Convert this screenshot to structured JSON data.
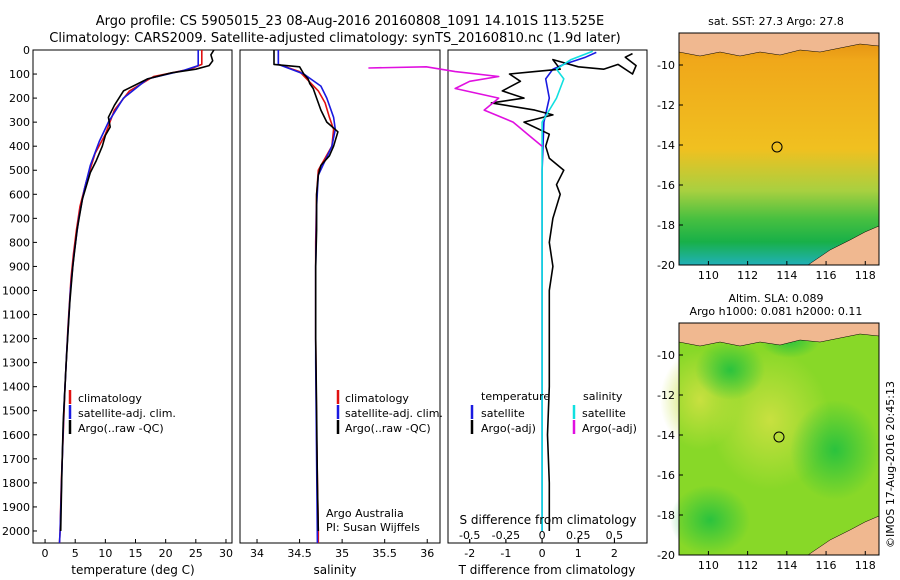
{
  "title_line1": "Argo profile: CS 5905015_23 08-Aug-2016 20160808_1091 14.101S 113.525E",
  "title_line2": "Climatology: CARS2009. Satellite-adjusted climatology: synTS_20160810.nc (1.9d later)",
  "colors": {
    "climatology": "#e01010",
    "satellite": "#1a1ae0",
    "argo": "#000000",
    "s_satellite": "#10e0e0",
    "s_argo": "#e010e0"
  },
  "chart_data": [
    {
      "type": "line",
      "xlabel": "temperature (deg C)",
      "xlim": [
        -2,
        31
      ],
      "ylim": [
        0,
        2050
      ],
      "xticks": [
        "0",
        "5",
        "10",
        "15",
        "20",
        "25",
        "30"
      ],
      "yticks": [
        "0",
        "100",
        "200",
        "300",
        "400",
        "500",
        "600",
        "700",
        "800",
        "900",
        "1000",
        "1100",
        "1200",
        "1300",
        "1400",
        "1500",
        "1600",
        "1700",
        "1800",
        "1900",
        "2000"
      ],
      "legend": [
        "climatology",
        "satellite-adj. clim.",
        "Argo(..raw -QC)"
      ],
      "series": [
        {
          "name": "climatology",
          "points": [
            [
              26,
              0
            ],
            [
              26,
              60
            ],
            [
              24,
              80
            ],
            [
              18,
              110
            ],
            [
              14,
              170
            ],
            [
              11.5,
              250
            ],
            [
              10,
              350
            ],
            [
              8.3,
              430
            ],
            [
              6.8,
              550
            ],
            [
              5.8,
              650
            ],
            [
              5.2,
              750
            ],
            [
              4.7,
              850
            ],
            [
              4.3,
              950
            ],
            [
              3.8,
              1150
            ],
            [
              3.3,
              1400
            ],
            [
              3,
              1600
            ],
            [
              2.7,
              1800
            ],
            [
              2.5,
              2000
            ],
            [
              2.4,
              2050
            ]
          ]
        },
        {
          "name": "satellite-adj. clim.",
          "points": [
            [
              25.4,
              0
            ],
            [
              25.4,
              65
            ],
            [
              23,
              85
            ],
            [
              17,
              120
            ],
            [
              13,
              200
            ],
            [
              10.5,
              300
            ],
            [
              9,
              380
            ],
            [
              7.5,
              480
            ],
            [
              6.5,
              580
            ],
            [
              5.6,
              700
            ],
            [
              4.8,
              850
            ],
            [
              4.2,
              1000
            ],
            [
              3.6,
              1250
            ],
            [
              3.1,
              1500
            ],
            [
              2.8,
              1750
            ],
            [
              2.5,
              2000
            ],
            [
              2.4,
              2050
            ]
          ]
        },
        {
          "name": "Argo(..raw -QC)",
          "points": [
            [
              28,
              0
            ],
            [
              27.5,
              20
            ],
            [
              27.8,
              45
            ],
            [
              27.2,
              65
            ],
            [
              25,
              80
            ],
            [
              21,
              95
            ],
            [
              17,
              120
            ],
            [
              13,
              170
            ],
            [
              11.5,
              230
            ],
            [
              10.5,
              280
            ],
            [
              10.8,
              320
            ],
            [
              10,
              355
            ],
            [
              9.5,
              400
            ],
            [
              8.5,
              460
            ],
            [
              7.5,
              510
            ],
            [
              6.2,
              620
            ],
            [
              5.3,
              750
            ],
            [
              4.6,
              900
            ],
            [
              4.1,
              1050
            ],
            [
              3.5,
              1300
            ],
            [
              3,
              1550
            ],
            [
              2.8,
              1750
            ],
            [
              2.6,
              2000
            ]
          ]
        }
      ]
    },
    {
      "type": "line",
      "xlabel": "salinity",
      "xlim": [
        33.8,
        36.15
      ],
      "ylim": [
        0,
        2050
      ],
      "xticks": [
        "34",
        "34.5",
        "35",
        "35.5",
        "36"
      ],
      "legend": [
        "climatology",
        "satellite-adj. clim.",
        "Argo(..raw -QC)"
      ],
      "annotations": [
        "Argo Australia",
        "PI: Susan Wijffels"
      ],
      "series": [
        {
          "name": "climatology",
          "points": [
            [
              34.25,
              0
            ],
            [
              34.25,
              60
            ],
            [
              34.5,
              90
            ],
            [
              34.72,
              170
            ],
            [
              34.8,
              220
            ],
            [
              34.85,
              280
            ],
            [
              34.9,
              330
            ],
            [
              34.88,
              400
            ],
            [
              34.8,
              450
            ],
            [
              34.72,
              500
            ],
            [
              34.7,
              600
            ],
            [
              34.69,
              800
            ],
            [
              34.69,
              1200
            ],
            [
              34.7,
              1600
            ],
            [
              34.72,
              2000
            ],
            [
              34.72,
              2050
            ]
          ]
        },
        {
          "name": "satellite-adj. clim.",
          "points": [
            [
              34.25,
              0
            ],
            [
              34.25,
              60
            ],
            [
              34.55,
              100
            ],
            [
              34.75,
              150
            ],
            [
              34.82,
              200
            ],
            [
              34.9,
              280
            ],
            [
              34.92,
              330
            ],
            [
              34.88,
              400
            ],
            [
              34.8,
              460
            ],
            [
              34.72,
              520
            ],
            [
              34.7,
              650
            ],
            [
              34.69,
              900
            ],
            [
              34.69,
              1300
            ],
            [
              34.7,
              1700
            ],
            [
              34.71,
              2050
            ]
          ]
        },
        {
          "name": "Argo(..raw -QC)",
          "points": [
            [
              34.2,
              0
            ],
            [
              34.2,
              60
            ],
            [
              34.5,
              70
            ],
            [
              34.55,
              100
            ],
            [
              34.6,
              120
            ],
            [
              34.62,
              140
            ],
            [
              34.66,
              160
            ],
            [
              34.7,
              200
            ],
            [
              34.75,
              250
            ],
            [
              34.82,
              300
            ],
            [
              34.95,
              340
            ],
            [
              34.9,
              400
            ],
            [
              34.85,
              440
            ],
            [
              34.75,
              480
            ],
            [
              34.72,
              520
            ],
            [
              34.7,
              600
            ],
            [
              34.7,
              750
            ],
            [
              34.69,
              900
            ],
            [
              34.69,
              1200
            ],
            [
              34.7,
              1500
            ],
            [
              34.71,
              1800
            ],
            [
              34.72,
              2000
            ]
          ]
        }
      ]
    },
    {
      "type": "line",
      "xlabel": "T difference from climatology",
      "xlabel_top": "S difference from climatology",
      "xlim": [
        -2.6,
        2.9
      ],
      "ylim": [
        0,
        2050
      ],
      "xticks": [
        "-2",
        "-1",
        "0",
        "1",
        "2"
      ],
      "xticks_top": [
        "-0.5",
        "-0.25",
        "0",
        "0.25",
        "0.5"
      ],
      "legend_titles": [
        "temperature",
        "salinity"
      ],
      "legend": [
        "satellite",
        "Argo(-adj)",
        "satellite",
        "Argo(-adj)"
      ],
      "series": [
        {
          "name": "satellite",
          "points": [
            [
              1.5,
              10
            ],
            [
              1.2,
              30
            ],
            [
              0.6,
              60
            ],
            [
              0.3,
              80
            ],
            [
              0.1,
              120
            ],
            [
              0.2,
              200
            ],
            [
              0.05,
              300
            ],
            [
              0,
              500
            ],
            [
              0,
              800
            ],
            [
              0,
              1200
            ],
            [
              0,
              1600
            ],
            [
              0,
              2000
            ]
          ]
        },
        {
          "name": "Argo(-adj)",
          "points": [
            [
              2.5,
              15
            ],
            [
              2.3,
              30
            ],
            [
              2.6,
              65
            ],
            [
              2.5,
              100
            ],
            [
              2.1,
              60
            ],
            [
              1.7,
              80
            ],
            [
              1,
              70
            ],
            [
              0.3,
              40
            ],
            [
              0.5,
              80
            ],
            [
              -0.2,
              90
            ],
            [
              -0.9,
              100
            ],
            [
              -0.6,
              130
            ],
            [
              -1.1,
              170
            ],
            [
              -0.5,
              200
            ],
            [
              -1.4,
              220
            ],
            [
              -0.2,
              250
            ],
            [
              0.3,
              270
            ],
            [
              -0.5,
              300
            ],
            [
              0.2,
              350
            ],
            [
              0.1,
              400
            ],
            [
              0.2,
              450
            ],
            [
              0.6,
              500
            ],
            [
              0.4,
              560
            ],
            [
              0.5,
              600
            ],
            [
              0.3,
              700
            ],
            [
              0.2,
              800
            ],
            [
              0.3,
              900
            ],
            [
              0.2,
              1000
            ],
            [
              0.2,
              1200
            ],
            [
              0.2,
              1400
            ],
            [
              0.15,
              1600
            ],
            [
              0.2,
              1800
            ],
            [
              0.2,
              2000
            ]
          ]
        },
        {
          "name": "satellite",
          "points": [
            [
              0.35,
              5
            ],
            [
              0.2,
              40
            ],
            [
              0.1,
              80
            ],
            [
              0.15,
              120
            ],
            [
              0.1,
              200
            ],
            [
              0,
              300
            ],
            [
              0,
              500
            ],
            [
              0,
              800
            ],
            [
              0,
              1000
            ],
            [
              0,
              1300
            ],
            [
              0,
              1600
            ],
            [
              0,
              2000
            ]
          ]
        },
        {
          "name": "Argo(-adj)",
          "points": [
            [
              -1.2,
              75
            ],
            [
              -0.8,
              70
            ],
            [
              -0.6,
              90
            ],
            [
              -0.3,
              110
            ],
            [
              -0.5,
              130
            ],
            [
              -0.6,
              160
            ],
            [
              -0.3,
              200
            ],
            [
              -0.4,
              250
            ],
            [
              -0.2,
              300
            ],
            [
              -0.1,
              350
            ],
            [
              0,
              400
            ]
          ]
        }
      ]
    },
    {
      "type": "heatmap",
      "title": "sat. SST: 27.3 Argo: 27.8",
      "xticks": [
        "110",
        "112",
        "114",
        "116",
        "118"
      ],
      "yticks": [
        "-10",
        "-12",
        "-14",
        "-16",
        "-18",
        "-20"
      ],
      "xlim": [
        108.5,
        118.7
      ],
      "ylim": [
        -20,
        -8.4
      ],
      "marker": [
        113.5,
        -14.1
      ]
    },
    {
      "type": "heatmap",
      "title_line1": "Altim. SLA: 0.089",
      "title_line2": "Argo h1000: 0.081 h2000: 0.11",
      "xticks": [
        "110",
        "112",
        "114",
        "116",
        "118"
      ],
      "yticks": [
        "-10",
        "-12",
        "-14",
        "-16",
        "-18",
        "-20"
      ],
      "xlim": [
        108.5,
        118.7
      ],
      "ylim": [
        -20,
        -8.4
      ],
      "marker": [
        113.6,
        -14.1
      ]
    }
  ],
  "footer_credit": "©IMOS 17-Aug-2016 20:45:13"
}
